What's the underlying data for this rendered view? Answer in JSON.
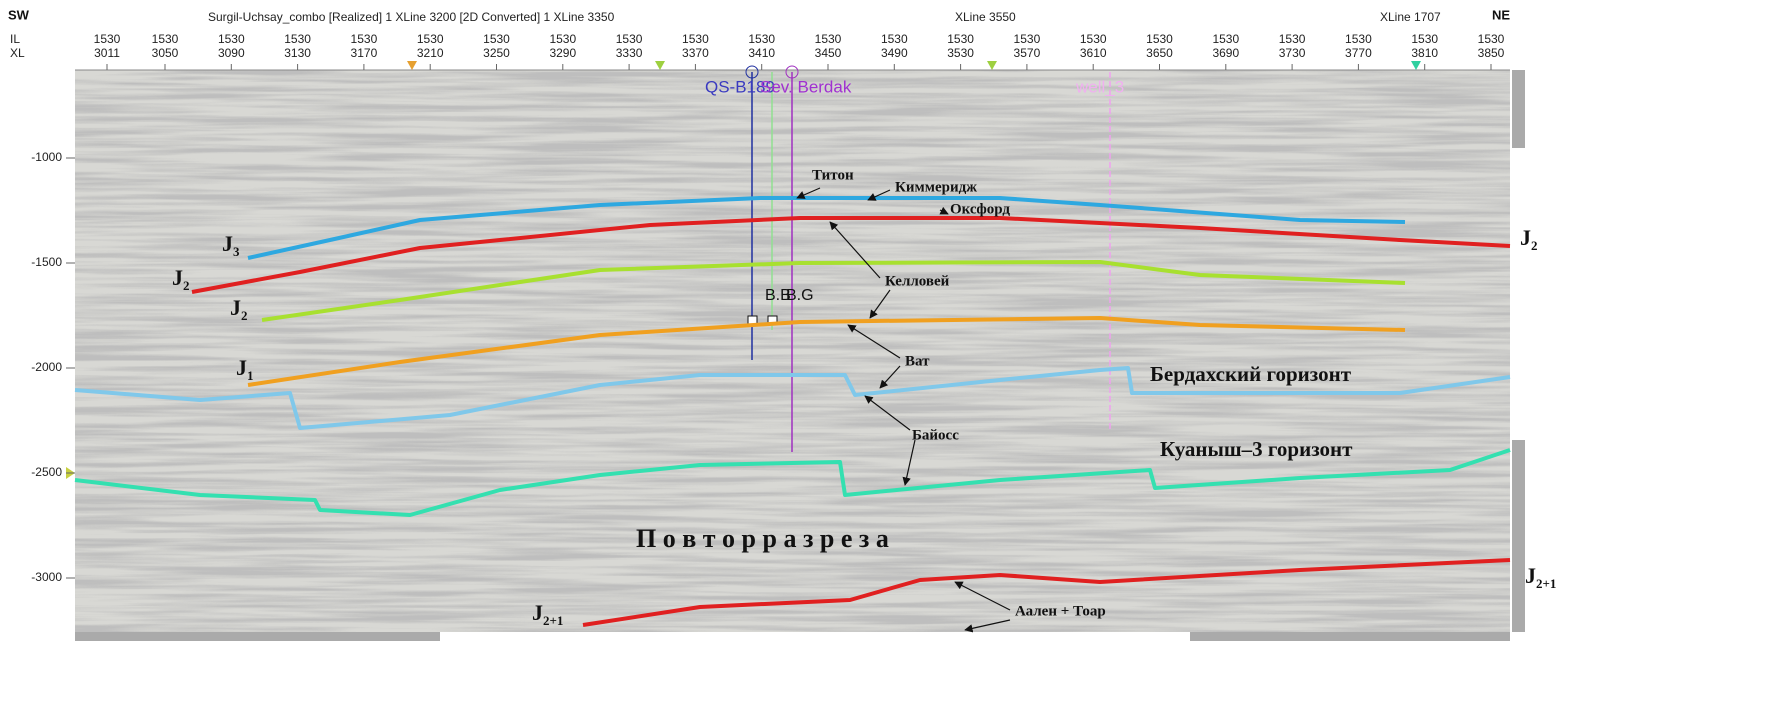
{
  "header": {
    "sw": "SW",
    "ne": "NE",
    "title": "Surgil-Uchsay_combo [Realized] 1 XLine 3200 [2D Converted] 1  XLine 3350",
    "xline_mid": "XLine 3550",
    "xline_right": "XLine 1707",
    "row_labels": [
      "IL",
      "XL"
    ]
  },
  "columns": [
    {
      "il": "1530",
      "xl": "3011"
    },
    {
      "il": "1530",
      "xl": "3050"
    },
    {
      "il": "1530",
      "xl": "3090"
    },
    {
      "il": "1530",
      "xl": "3130"
    },
    {
      "il": "1530",
      "xl": "3170"
    },
    {
      "il": "1530",
      "xl": "3210"
    },
    {
      "il": "1530",
      "xl": "3250"
    },
    {
      "il": "1530",
      "xl": "3290"
    },
    {
      "il": "1530",
      "xl": "3330"
    },
    {
      "il": "1530",
      "xl": "3370"
    },
    {
      "il": "1530",
      "xl": "3410"
    },
    {
      "il": "1530",
      "xl": "3450"
    },
    {
      "il": "1530",
      "xl": "3490"
    },
    {
      "il": "1530",
      "xl": "3530"
    },
    {
      "il": "1530",
      "xl": "3570"
    },
    {
      "il": "1530",
      "xl": "3610"
    },
    {
      "il": "1530",
      "xl": "3650"
    },
    {
      "il": "1530",
      "xl": "3690"
    },
    {
      "il": "1530",
      "xl": "3730"
    },
    {
      "il": "1530",
      "xl": "3770"
    },
    {
      "il": "1530",
      "xl": "3810"
    },
    {
      "il": "1530",
      "xl": "3850"
    }
  ],
  "depth_ticks": [
    "-1000",
    "-1500",
    "-2000",
    "-2500",
    "-3000"
  ],
  "wells": {
    "well_a": "QS-B189",
    "well_b": "Sev. Berdak",
    "well_c": "well_3",
    "marker_a": "B.B",
    "marker_b": "B.G"
  },
  "annotations": {
    "titon": "Титон",
    "kimmeridge": "Киммеридж",
    "oxford": "Оксфорд",
    "kellovey": "Келловей",
    "bat": "Ват",
    "bayoss": "Байосс",
    "berdakh": "Бердахский горизонт",
    "kuanysh": "Куаныш–3 горизонт",
    "repeat": "П о в т о р       р а з р е з а",
    "aalen": "Аален + Тоар"
  },
  "horizon_labels": [
    {
      "base": "J",
      "sub": "3"
    },
    {
      "base": "J",
      "sub": "2"
    },
    {
      "base": "J",
      "sub": "2"
    },
    {
      "base": "J",
      "sub": "1"
    },
    {
      "base": "J",
      "sub": "2"
    },
    {
      "base": "J",
      "sub": "2+1"
    },
    {
      "base": "J",
      "sub": "2+1"
    }
  ]
}
